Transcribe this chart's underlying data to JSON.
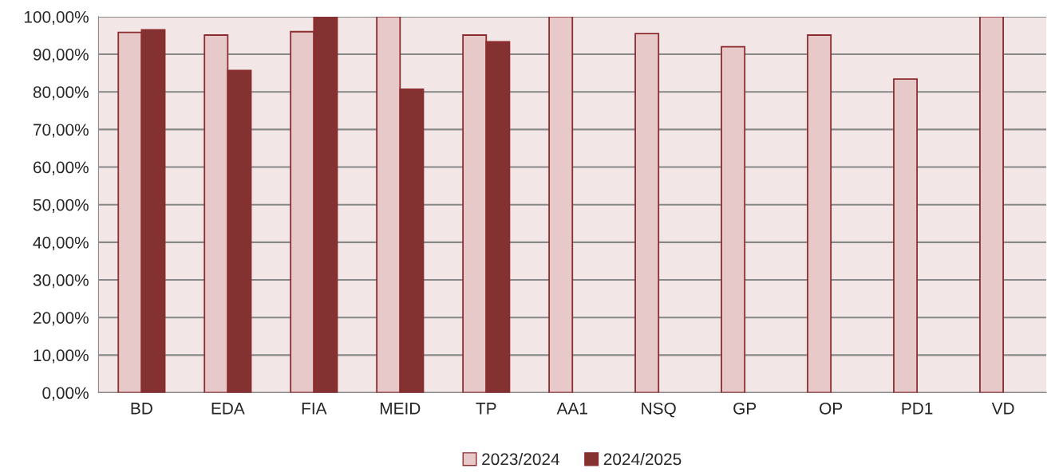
{
  "chart_data": {
    "type": "bar",
    "categories": [
      "BD",
      "EDA",
      "FIA",
      "MEID",
      "TP",
      "AA1",
      "NSQ",
      "GP",
      "OP",
      "PD1",
      "VD"
    ],
    "series": [
      {
        "name": "2023/2024",
        "color": "#e8c9ca",
        "values": [
          95.8,
          95.1,
          96.0,
          100,
          95.1,
          100,
          95.5,
          92.0,
          95.1,
          83.4,
          100
        ]
      },
      {
        "name": "2024/2025",
        "color": "#843132",
        "values": [
          96.5,
          85.7,
          100,
          80.7,
          93.3,
          null,
          null,
          null,
          null,
          null,
          null
        ]
      }
    ],
    "ylim": [
      0,
      100
    ],
    "yticks": [
      {
        "value": 0,
        "label": "0,00%"
      },
      {
        "value": 10,
        "label": "10,00%"
      },
      {
        "value": 20,
        "label": "20,00%"
      },
      {
        "value": 30,
        "label": "30,00%"
      },
      {
        "value": 40,
        "label": "40,00%"
      },
      {
        "value": 50,
        "label": "50,00%"
      },
      {
        "value": 60,
        "label": "60,00%"
      },
      {
        "value": 70,
        "label": "70,00%"
      },
      {
        "value": 80,
        "label": "80,00%"
      },
      {
        "value": 90,
        "label": "90,00%"
      },
      {
        "value": 100,
        "label": "100,00%"
      }
    ],
    "grid": "y",
    "legend": "bottom"
  }
}
